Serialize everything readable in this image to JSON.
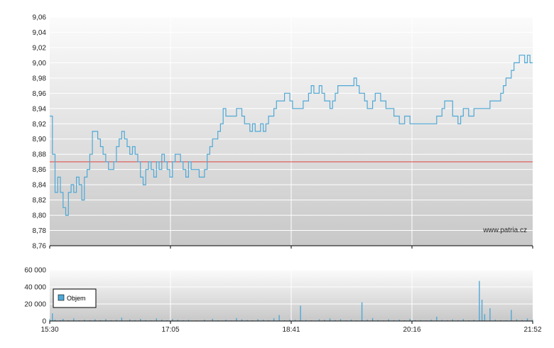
{
  "watermark": "www.patria.cz",
  "colors": {
    "line": "#4ea8d6",
    "reference": "#e0443e",
    "volume": "#4ea8d6",
    "legend_swatch": "#4ea8d6"
  },
  "chart_data": [
    {
      "type": "line",
      "name": "price",
      "x_ticks": [
        "15:30",
        "17:05",
        "18:41",
        "20:16",
        "21:52"
      ],
      "y_ticks": [
        "8,76",
        "8,78",
        "8,80",
        "8,82",
        "8,84",
        "8,86",
        "8,88",
        "8,90",
        "8,92",
        "8,94",
        "8,96",
        "8,98",
        "9,00",
        "9,02",
        "9,04",
        "9,06"
      ],
      "ylim": [
        8.76,
        9.06
      ],
      "grid": true,
      "reference_line": 8.87,
      "series": [
        {
          "values": [
            [
              0,
              8.93
            ],
            [
              1,
              8.88
            ],
            [
              2,
              8.83
            ],
            [
              3,
              8.85
            ],
            [
              4,
              8.83
            ],
            [
              5,
              8.81
            ],
            [
              6,
              8.8
            ],
            [
              7,
              8.83
            ],
            [
              8,
              8.84
            ],
            [
              9,
              8.83
            ],
            [
              10,
              8.85
            ],
            [
              11,
              8.84
            ],
            [
              12,
              8.82
            ],
            [
              13,
              8.85
            ],
            [
              14,
              8.86
            ],
            [
              15,
              8.88
            ],
            [
              16,
              8.91
            ],
            [
              17,
              8.91
            ],
            [
              18,
              8.9
            ],
            [
              19,
              8.89
            ],
            [
              20,
              8.88
            ],
            [
              21,
              8.87
            ],
            [
              22,
              8.86
            ],
            [
              23,
              8.86
            ],
            [
              24,
              8.87
            ],
            [
              25,
              8.89
            ],
            [
              26,
              8.9
            ],
            [
              27,
              8.91
            ],
            [
              28,
              8.9
            ],
            [
              29,
              8.89
            ],
            [
              30,
              8.88
            ],
            [
              31,
              8.89
            ],
            [
              32,
              8.88
            ],
            [
              33,
              8.87
            ],
            [
              34,
              8.85
            ],
            [
              35,
              8.84
            ],
            [
              36,
              8.86
            ],
            [
              37,
              8.87
            ],
            [
              38,
              8.86
            ],
            [
              39,
              8.85
            ],
            [
              40,
              8.87
            ],
            [
              41,
              8.86
            ],
            [
              42,
              8.88
            ],
            [
              43,
              8.87
            ],
            [
              44,
              8.86
            ],
            [
              45,
              8.85
            ],
            [
              46,
              8.87
            ],
            [
              47,
              8.88
            ],
            [
              48,
              8.88
            ],
            [
              49,
              8.87
            ],
            [
              50,
              8.86
            ],
            [
              51,
              8.85
            ],
            [
              52,
              8.87
            ],
            [
              53,
              8.86
            ],
            [
              54,
              8.86
            ],
            [
              55,
              8.86
            ],
            [
              56,
              8.85
            ],
            [
              57,
              8.85
            ],
            [
              58,
              8.86
            ],
            [
              59,
              8.88
            ],
            [
              60,
              8.89
            ],
            [
              61,
              8.9
            ],
            [
              62,
              8.9
            ],
            [
              63,
              8.91
            ],
            [
              64,
              8.92
            ],
            [
              65,
              8.94
            ],
            [
              66,
              8.93
            ],
            [
              67,
              8.93
            ],
            [
              68,
              8.93
            ],
            [
              69,
              8.93
            ],
            [
              70,
              8.94
            ],
            [
              71,
              8.94
            ],
            [
              72,
              8.93
            ],
            [
              73,
              8.92
            ],
            [
              74,
              8.92
            ],
            [
              75,
              8.91
            ],
            [
              76,
              8.92
            ],
            [
              77,
              8.91
            ],
            [
              78,
              8.91
            ],
            [
              79,
              8.92
            ],
            [
              80,
              8.91
            ],
            [
              81,
              8.92
            ],
            [
              82,
              8.93
            ],
            [
              83,
              8.93
            ],
            [
              84,
              8.94
            ],
            [
              85,
              8.95
            ],
            [
              86,
              8.95
            ],
            [
              87,
              8.95
            ],
            [
              88,
              8.96
            ],
            [
              89,
              8.96
            ],
            [
              90,
              8.95
            ],
            [
              91,
              8.94
            ],
            [
              92,
              8.94
            ],
            [
              93,
              8.94
            ],
            [
              94,
              8.94
            ],
            [
              95,
              8.95
            ],
            [
              96,
              8.95
            ],
            [
              97,
              8.96
            ],
            [
              98,
              8.97
            ],
            [
              99,
              8.96
            ],
            [
              100,
              8.96
            ],
            [
              101,
              8.97
            ],
            [
              102,
              8.96
            ],
            [
              103,
              8.95
            ],
            [
              104,
              8.95
            ],
            [
              105,
              8.94
            ],
            [
              106,
              8.95
            ],
            [
              107,
              8.96
            ],
            [
              108,
              8.97
            ],
            [
              109,
              8.97
            ],
            [
              110,
              8.97
            ],
            [
              111,
              8.97
            ],
            [
              112,
              8.97
            ],
            [
              113,
              8.97
            ],
            [
              114,
              8.98
            ],
            [
              115,
              8.97
            ],
            [
              116,
              8.96
            ],
            [
              117,
              8.96
            ],
            [
              118,
              8.95
            ],
            [
              119,
              8.94
            ],
            [
              120,
              8.94
            ],
            [
              121,
              8.95
            ],
            [
              122,
              8.96
            ],
            [
              123,
              8.96
            ],
            [
              124,
              8.95
            ],
            [
              125,
              8.95
            ],
            [
              126,
              8.94
            ],
            [
              127,
              8.94
            ],
            [
              128,
              8.94
            ],
            [
              129,
              8.93
            ],
            [
              130,
              8.93
            ],
            [
              131,
              8.92
            ],
            [
              132,
              8.92
            ],
            [
              133,
              8.93
            ],
            [
              134,
              8.93
            ],
            [
              135,
              8.92
            ],
            [
              136,
              8.92
            ],
            [
              137,
              8.92
            ],
            [
              138,
              8.92
            ],
            [
              139,
              8.92
            ],
            [
              140,
              8.92
            ],
            [
              141,
              8.92
            ],
            [
              142,
              8.92
            ],
            [
              143,
              8.92
            ],
            [
              144,
              8.92
            ],
            [
              145,
              8.93
            ],
            [
              146,
              8.93
            ],
            [
              147,
              8.94
            ],
            [
              148,
              8.95
            ],
            [
              149,
              8.95
            ],
            [
              150,
              8.95
            ],
            [
              151,
              8.93
            ],
            [
              152,
              8.93
            ],
            [
              153,
              8.92
            ],
            [
              154,
              8.93
            ],
            [
              155,
              8.94
            ],
            [
              156,
              8.94
            ],
            [
              157,
              8.93
            ],
            [
              158,
              8.93
            ],
            [
              159,
              8.94
            ],
            [
              160,
              8.94
            ],
            [
              161,
              8.94
            ],
            [
              162,
              8.94
            ],
            [
              163,
              8.94
            ],
            [
              164,
              8.94
            ],
            [
              165,
              8.95
            ],
            [
              166,
              8.95
            ],
            [
              167,
              8.95
            ],
            [
              168,
              8.95
            ],
            [
              169,
              8.96
            ],
            [
              170,
              8.97
            ],
            [
              171,
              8.98
            ],
            [
              172,
              8.98
            ],
            [
              173,
              8.99
            ],
            [
              174,
              9.0
            ],
            [
              175,
              9.0
            ],
            [
              176,
              9.01
            ],
            [
              177,
              9.01
            ],
            [
              178,
              9.0
            ],
            [
              179,
              9.01
            ],
            [
              180,
              9.0
            ],
            [
              181,
              9.0
            ]
          ]
        }
      ]
    },
    {
      "type": "bar",
      "name": "volume",
      "legend": [
        "Objem"
      ],
      "x_ticks": [
        "15:30",
        "17:05",
        "18:41",
        "20:16",
        "21:52"
      ],
      "y_ticks": [
        "0",
        "20 000",
        "40 000",
        "60 000"
      ],
      "ylim": [
        0,
        60000
      ],
      "grid": true,
      "series": [
        {
          "name": "Objem",
          "values": [
            [
              0,
              2000
            ],
            [
              1,
              9000
            ],
            [
              2,
              1500
            ],
            [
              4,
              1000
            ],
            [
              5,
              2500
            ],
            [
              7,
              1000
            ],
            [
              9,
              3000
            ],
            [
              11,
              800
            ],
            [
              13,
              1500
            ],
            [
              15,
              1000
            ],
            [
              17,
              2000
            ],
            [
              19,
              1200
            ],
            [
              20,
              500
            ],
            [
              21,
              2200
            ],
            [
              23,
              900
            ],
            [
              25,
              1400
            ],
            [
              27,
              4000
            ],
            [
              29,
              600
            ],
            [
              30,
              1800
            ],
            [
              32,
              1000
            ],
            [
              34,
              2500
            ],
            [
              36,
              1100
            ],
            [
              38,
              700
            ],
            [
              40,
              3000
            ],
            [
              42,
              1500
            ],
            [
              44,
              800
            ],
            [
              46,
              2200
            ],
            [
              48,
              1600
            ],
            [
              50,
              900
            ],
            [
              52,
              1300
            ],
            [
              55,
              700
            ],
            [
              58,
              1500
            ],
            [
              61,
              2600
            ],
            [
              63,
              900
            ],
            [
              66,
              1400
            ],
            [
              68,
              700
            ],
            [
              70,
              3500
            ],
            [
              72,
              1800
            ],
            [
              74,
              1200
            ],
            [
              76,
              900
            ],
            [
              78,
              2000
            ],
            [
              80,
              1500
            ],
            [
              82,
              1100
            ],
            [
              84,
              3200
            ],
            [
              86,
              7000
            ],
            [
              88,
              900
            ],
            [
              90,
              1600
            ],
            [
              92,
              1300
            ],
            [
              94,
              18000
            ],
            [
              96,
              1200
            ],
            [
              98,
              800
            ],
            [
              101,
              2000
            ],
            [
              103,
              1500
            ],
            [
              105,
              3000
            ],
            [
              107,
              1100
            ],
            [
              109,
              2200
            ],
            [
              111,
              800
            ],
            [
              113,
              1600
            ],
            [
              115,
              900
            ],
            [
              117,
              22000
            ],
            [
              119,
              1500
            ],
            [
              121,
              3500
            ],
            [
              123,
              1200
            ],
            [
              125,
              700
            ],
            [
              127,
              2000
            ],
            [
              129,
              1000
            ],
            [
              131,
              1600
            ],
            [
              133,
              800
            ],
            [
              135,
              2400
            ],
            [
              137,
              900
            ],
            [
              139,
              1100
            ],
            [
              141,
              700
            ],
            [
              143,
              1500
            ],
            [
              145,
              5000
            ],
            [
              147,
              1200
            ],
            [
              149,
              900
            ],
            [
              151,
              1800
            ],
            [
              153,
              1100
            ],
            [
              155,
              2200
            ],
            [
              157,
              900
            ],
            [
              159,
              1400
            ],
            [
              161,
              47000
            ],
            [
              162,
              25000
            ],
            [
              163,
              8000
            ],
            [
              165,
              15000
            ],
            [
              167,
              1600
            ],
            [
              169,
              1100
            ],
            [
              171,
              900
            ],
            [
              173,
              13000
            ],
            [
              175,
              1800
            ],
            [
              177,
              1200
            ],
            [
              179,
              3000
            ],
            [
              181,
              1500
            ]
          ]
        }
      ]
    }
  ]
}
